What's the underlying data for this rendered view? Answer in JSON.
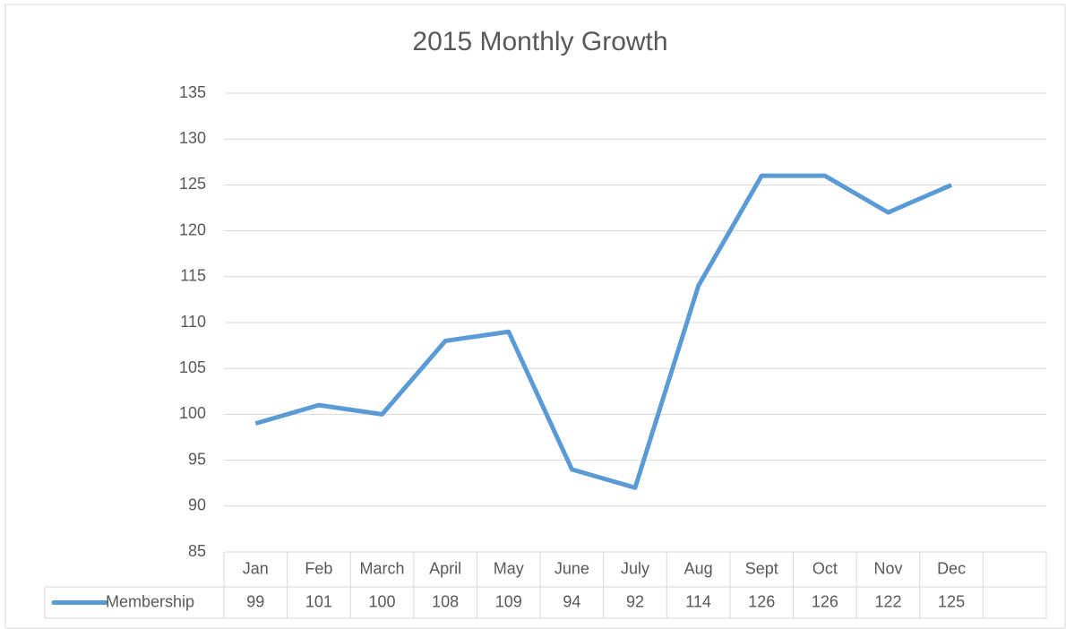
{
  "chart_data": {
    "type": "line",
    "title": "2015 Monthly Growth",
    "categories": [
      "Jan",
      "Feb",
      "March",
      "April",
      "May",
      "June",
      "July",
      "Aug",
      "Sept",
      "Oct",
      "Nov",
      "Dec",
      null
    ],
    "series": [
      {
        "name": "Membership",
        "color": "#5b9bd5",
        "values": [
          99,
          101,
          100,
          108,
          109,
          94,
          92,
          114,
          126,
          126,
          122,
          125,
          null
        ]
      }
    ],
    "ylim": [
      85,
      135
    ],
    "yticks": [
      85,
      90,
      95,
      100,
      105,
      110,
      115,
      120,
      125,
      130,
      135
    ],
    "grid": true,
    "data_table": true
  }
}
